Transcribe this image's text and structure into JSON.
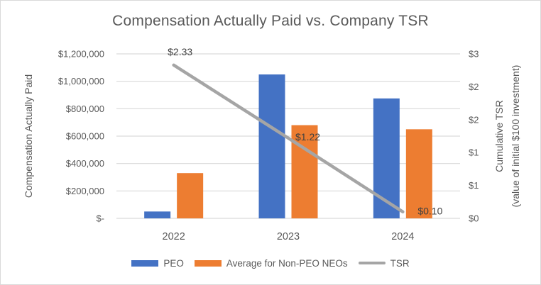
{
  "chart_data": {
    "type": "combo-bar-line",
    "title": "Compensation Actually Paid vs. Company TSR",
    "categories": [
      "2022",
      "2023",
      "2024"
    ],
    "series": [
      {
        "name": "PEO",
        "type": "bar",
        "axis": "left",
        "color": "#4472C4",
        "values": [
          50000,
          1050000,
          875000
        ]
      },
      {
        "name": "Average for Non-PEO NEOs",
        "type": "bar",
        "axis": "left",
        "color": "#ED7D31",
        "values": [
          330000,
          680000,
          650000
        ]
      },
      {
        "name": "TSR",
        "type": "line",
        "axis": "right",
        "color": "#A5A5A5",
        "values": [
          2.33,
          1.22,
          0.1
        ],
        "data_labels": [
          "$2.33",
          "$1.22",
          "$0.10"
        ]
      }
    ],
    "left_axis": {
      "title": "Compensation Actually Paid",
      "min": 0,
      "max": 1200000,
      "tick_labels": [
        "$1,200,000",
        "$1,000,000",
        "$800,000",
        "$600,000",
        "$400,000",
        "$200,000",
        "$-"
      ]
    },
    "right_axis": {
      "title_line1": "Cumulative TSR",
      "title_line2": "(value of initial $100 investment)",
      "min": 0,
      "max": 2.5,
      "tick_labels": [
        "$3",
        "$2",
        "$2",
        "$1",
        "$1",
        "$0"
      ]
    },
    "legend_position": "bottom",
    "grid": true,
    "colors": {
      "grid": "#D9D9D9",
      "axis_text": "#595959",
      "title_text": "#595959",
      "data_label_text": "#404040",
      "border": "#D9D9D9",
      "background": "#FFFFFF"
    }
  }
}
